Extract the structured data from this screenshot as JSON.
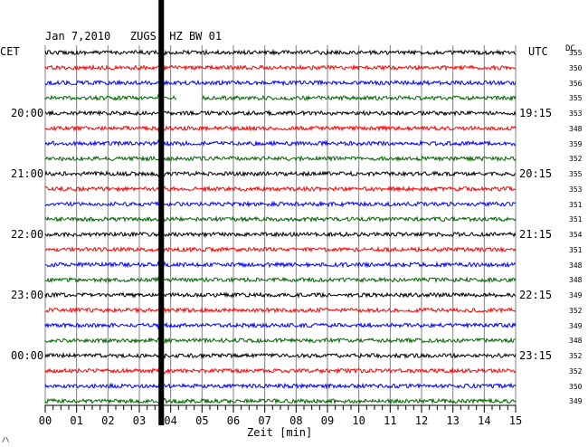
{
  "header": {
    "title": "Jan 7,2010   ZUGS  HZ BW 01",
    "left_timezone": "CET",
    "right_timezone": "UTC",
    "dc_label": "DC"
  },
  "footer": {
    "xlabel": "Zeit [min]",
    "corner_mark": "/\\"
  },
  "colors": {
    "trace_cycle": [
      "#000000",
      "#ff0000",
      "#0000ff",
      "#006400"
    ],
    "grid": "#808080",
    "marker": "#000000"
  },
  "chart_data": {
    "type": "line",
    "xlabel": "Zeit [min]",
    "x_range": [
      0,
      15
    ],
    "x_ticks": [
      "00",
      "01",
      "02",
      "03",
      "04",
      "05",
      "06",
      "07",
      "08",
      "09",
      "10",
      "11",
      "12",
      "13",
      "14",
      "15"
    ],
    "minor_tick_interval_min": 0.25,
    "event_marker_min": 3.7,
    "gap": {
      "trace": 3,
      "from_min": 4.2,
      "to_min": 5.0
    },
    "left_hour_labels": [
      {
        "trace": 4,
        "text": "20:00"
      },
      {
        "trace": 8,
        "text": "21:00"
      },
      {
        "trace": 12,
        "text": "22:00"
      },
      {
        "trace": 16,
        "text": "23:00"
      },
      {
        "trace": 20,
        "text": "00:00"
      }
    ],
    "right_hour_labels": [
      {
        "trace": 4,
        "text": "19:15"
      },
      {
        "trace": 8,
        "text": "20:15"
      },
      {
        "trace": 12,
        "text": "21:15"
      },
      {
        "trace": 16,
        "text": "22:15"
      },
      {
        "trace": 20,
        "text": "23:15"
      }
    ],
    "dc_offsets": [
      "355",
      "350",
      "356",
      "355",
      "353",
      "348",
      "359",
      "352",
      "355",
      "353",
      "351",
      "351",
      "354",
      "351",
      "348",
      "348",
      "349",
      "352",
      "349",
      "348",
      "352",
      "352",
      "350",
      "349"
    ]
  }
}
